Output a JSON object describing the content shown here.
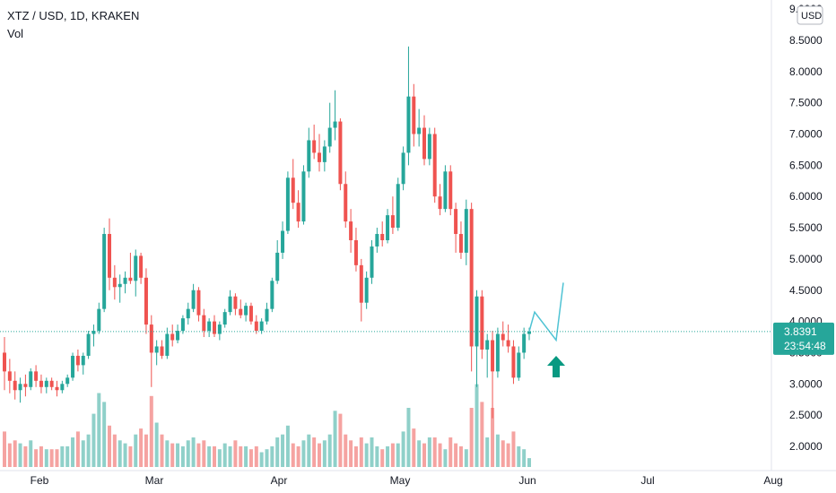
{
  "header": {
    "symbol": "XTZ / USD, 1D, KRAKEN",
    "volume_label": "Vol"
  },
  "price_axis": {
    "currency": "USD",
    "ticks": [
      "2.0000",
      "2.5000",
      "3.0000",
      "3.5000",
      "4.0000",
      "4.5000",
      "5.0000",
      "5.5000",
      "6.0000",
      "6.5000",
      "7.0000",
      "7.5000",
      "8.0000",
      "8.5000",
      "9.0000"
    ]
  },
  "current_price": {
    "value": "3.8391",
    "countdown": "23:54:48",
    "color": "#26a69a"
  },
  "colors": {
    "up": "#26a69a",
    "down": "#ef5350",
    "up_volume": "#8fd0c9",
    "down_volume": "#f5a3a1",
    "annotation": "#4fc3d4",
    "arrow": "#089981"
  },
  "chart_data": {
    "type": "candlestick",
    "title": "XTZ / USD, 1D, KRAKEN",
    "x_axis_labels": [
      "Feb",
      "Mar",
      "Apr",
      "May",
      "Jun",
      "Jul",
      "Aug"
    ],
    "ylim": [
      1.8,
      9.0
    ],
    "current_price": 3.8391,
    "candles": [
      [
        3.5,
        3.75,
        2.9,
        3.2
      ],
      [
        3.2,
        3.4,
        2.85,
        3.05
      ],
      [
        3.05,
        3.2,
        2.75,
        2.9
      ],
      [
        2.9,
        3.1,
        2.7,
        3.0
      ],
      [
        3.0,
        3.15,
        2.8,
        2.95
      ],
      [
        2.95,
        3.25,
        2.9,
        3.2
      ],
      [
        3.2,
        3.3,
        2.95,
        3.05
      ],
      [
        3.05,
        3.15,
        2.85,
        2.95
      ],
      [
        2.95,
        3.1,
        2.85,
        3.05
      ],
      [
        3.05,
        3.1,
        2.9,
        2.95
      ],
      [
        2.95,
        3.05,
        2.8,
        2.9
      ],
      [
        2.9,
        3.05,
        2.85,
        3.0
      ],
      [
        3.0,
        3.15,
        2.95,
        3.1
      ],
      [
        3.1,
        3.5,
        3.05,
        3.45
      ],
      [
        3.45,
        3.55,
        3.2,
        3.3
      ],
      [
        3.3,
        3.5,
        3.15,
        3.45
      ],
      [
        3.45,
        3.85,
        3.4,
        3.8
      ],
      [
        3.8,
        3.95,
        3.6,
        3.85
      ],
      [
        3.85,
        4.3,
        3.8,
        4.2
      ],
      [
        4.2,
        5.5,
        4.15,
        5.4
      ],
      [
        5.4,
        5.65,
        4.5,
        4.7
      ],
      [
        4.7,
        4.9,
        4.35,
        4.55
      ],
      [
        4.55,
        4.75,
        4.3,
        4.6
      ],
      [
        4.6,
        4.8,
        4.45,
        4.7
      ],
      [
        4.7,
        5.1,
        4.6,
        4.65
      ],
      [
        4.65,
        5.15,
        4.4,
        5.05
      ],
      [
        5.05,
        5.1,
        4.6,
        4.7
      ],
      [
        4.7,
        4.85,
        3.8,
        3.95
      ],
      [
        3.95,
        4.1,
        2.95,
        3.5
      ],
      [
        3.5,
        3.7,
        3.3,
        3.6
      ],
      [
        3.6,
        3.7,
        3.4,
        3.45
      ],
      [
        3.45,
        3.9,
        3.4,
        3.8
      ],
      [
        3.8,
        3.95,
        3.6,
        3.7
      ],
      [
        3.7,
        3.95,
        3.65,
        3.85
      ],
      [
        3.85,
        4.1,
        3.8,
        4.05
      ],
      [
        4.05,
        4.3,
        3.95,
        4.2
      ],
      [
        4.2,
        4.6,
        4.15,
        4.5
      ],
      [
        4.5,
        4.55,
        4.0,
        4.1
      ],
      [
        4.1,
        4.2,
        3.75,
        3.85
      ],
      [
        3.85,
        4.05,
        3.75,
        4.0
      ],
      [
        4.0,
        4.1,
        3.75,
        3.8
      ],
      [
        3.8,
        4.0,
        3.7,
        3.95
      ],
      [
        3.95,
        4.2,
        3.9,
        4.15
      ],
      [
        4.15,
        4.5,
        4.1,
        4.4
      ],
      [
        4.4,
        4.45,
        4.1,
        4.2
      ],
      [
        4.2,
        4.35,
        4.05,
        4.1
      ],
      [
        4.1,
        4.3,
        4.0,
        4.25
      ],
      [
        4.25,
        4.3,
        3.95,
        4.0
      ],
      [
        4.0,
        4.1,
        3.8,
        3.85
      ],
      [
        3.85,
        4.05,
        3.8,
        4.0
      ],
      [
        4.0,
        4.3,
        3.95,
        4.2
      ],
      [
        4.2,
        4.7,
        4.15,
        4.65
      ],
      [
        4.65,
        5.3,
        4.6,
        5.1
      ],
      [
        5.1,
        5.6,
        5.0,
        5.45
      ],
      [
        5.45,
        6.4,
        5.4,
        6.3
      ],
      [
        6.3,
        6.6,
        5.8,
        5.9
      ],
      [
        5.9,
        6.1,
        5.5,
        5.6
      ],
      [
        5.6,
        6.5,
        5.55,
        6.4
      ],
      [
        6.4,
        7.1,
        6.3,
        6.9
      ],
      [
        6.9,
        7.15,
        6.6,
        6.7
      ],
      [
        6.7,
        7.0,
        6.4,
        6.55
      ],
      [
        6.55,
        6.9,
        6.4,
        6.8
      ],
      [
        6.8,
        7.5,
        6.7,
        7.1
      ],
      [
        7.1,
        7.7,
        6.9,
        7.2
      ],
      [
        7.2,
        7.25,
        6.1,
        6.2
      ],
      [
        6.2,
        6.4,
        5.5,
        5.6
      ],
      [
        5.6,
        5.8,
        5.1,
        5.3
      ],
      [
        5.3,
        5.5,
        4.8,
        4.9
      ],
      [
        4.9,
        5.0,
        4.0,
        4.3
      ],
      [
        4.3,
        4.8,
        4.2,
        4.7
      ],
      [
        4.7,
        5.3,
        4.6,
        5.2
      ],
      [
        5.2,
        5.5,
        5.1,
        5.4
      ],
      [
        5.4,
        5.6,
        5.2,
        5.3
      ],
      [
        5.3,
        5.8,
        5.25,
        5.7
      ],
      [
        5.7,
        6.0,
        5.4,
        5.5
      ],
      [
        5.5,
        6.3,
        5.45,
        6.2
      ],
      [
        6.2,
        6.8,
        6.1,
        6.7
      ],
      [
        6.7,
        8.4,
        6.5,
        7.6
      ],
      [
        7.6,
        7.8,
        6.8,
        7.0
      ],
      [
        7.0,
        7.4,
        6.8,
        7.1
      ],
      [
        7.1,
        7.3,
        6.5,
        6.6
      ],
      [
        6.6,
        7.1,
        6.5,
        7.0
      ],
      [
        7.0,
        7.1,
        5.9,
        6.0
      ],
      [
        6.0,
        6.2,
        5.7,
        5.8
      ],
      [
        5.8,
        6.5,
        5.75,
        6.4
      ],
      [
        6.4,
        6.5,
        5.7,
        5.8
      ],
      [
        5.8,
        5.9,
        5.1,
        5.4
      ],
      [
        5.4,
        5.6,
        5.0,
        5.1
      ],
      [
        5.1,
        5.95,
        4.9,
        5.8
      ],
      [
        5.8,
        5.9,
        3.2,
        3.6
      ],
      [
        3.6,
        4.5,
        2.95,
        4.4
      ],
      [
        4.4,
        4.5,
        3.4,
        3.55
      ],
      [
        3.55,
        3.8,
        3.1,
        3.7
      ],
      [
        3.7,
        3.85,
        2.45,
        3.2
      ],
      [
        3.2,
        3.9,
        3.1,
        3.8
      ],
      [
        3.8,
        4.0,
        3.6,
        3.7
      ],
      [
        3.7,
        3.95,
        3.5,
        3.6
      ],
      [
        3.6,
        3.7,
        3.0,
        3.1
      ],
      [
        3.1,
        3.6,
        3.05,
        3.5
      ],
      [
        3.5,
        3.9,
        3.4,
        3.8
      ],
      [
        3.8,
        3.9,
        3.7,
        3.84
      ]
    ],
    "volume": [
      0.24,
      0.16,
      0.18,
      0.16,
      0.14,
      0.18,
      0.12,
      0.14,
      0.12,
      0.12,
      0.12,
      0.14,
      0.14,
      0.2,
      0.24,
      0.18,
      0.22,
      0.36,
      0.5,
      0.44,
      0.28,
      0.22,
      0.18,
      0.16,
      0.14,
      0.22,
      0.26,
      0.22,
      0.48,
      0.3,
      0.22,
      0.18,
      0.16,
      0.16,
      0.14,
      0.18,
      0.2,
      0.16,
      0.18,
      0.14,
      0.14,
      0.12,
      0.16,
      0.14,
      0.18,
      0.14,
      0.14,
      0.12,
      0.14,
      0.1,
      0.12,
      0.14,
      0.2,
      0.22,
      0.28,
      0.16,
      0.14,
      0.18,
      0.22,
      0.2,
      0.16,
      0.18,
      0.22,
      0.38,
      0.36,
      0.22,
      0.18,
      0.14,
      0.2,
      0.16,
      0.2,
      0.14,
      0.12,
      0.14,
      0.16,
      0.16,
      0.24,
      0.4,
      0.26,
      0.18,
      0.16,
      0.2,
      0.2,
      0.16,
      0.12,
      0.2,
      0.16,
      0.14,
      0.12,
      0.4,
      0.56,
      0.44,
      0.2,
      0.4,
      0.22,
      0.18,
      0.16,
      0.24,
      0.14,
      0.12,
      0.06
    ],
    "projection": [
      [
        3.84,
        4.15
      ],
      [
        3.7,
        4.62
      ]
    ]
  }
}
